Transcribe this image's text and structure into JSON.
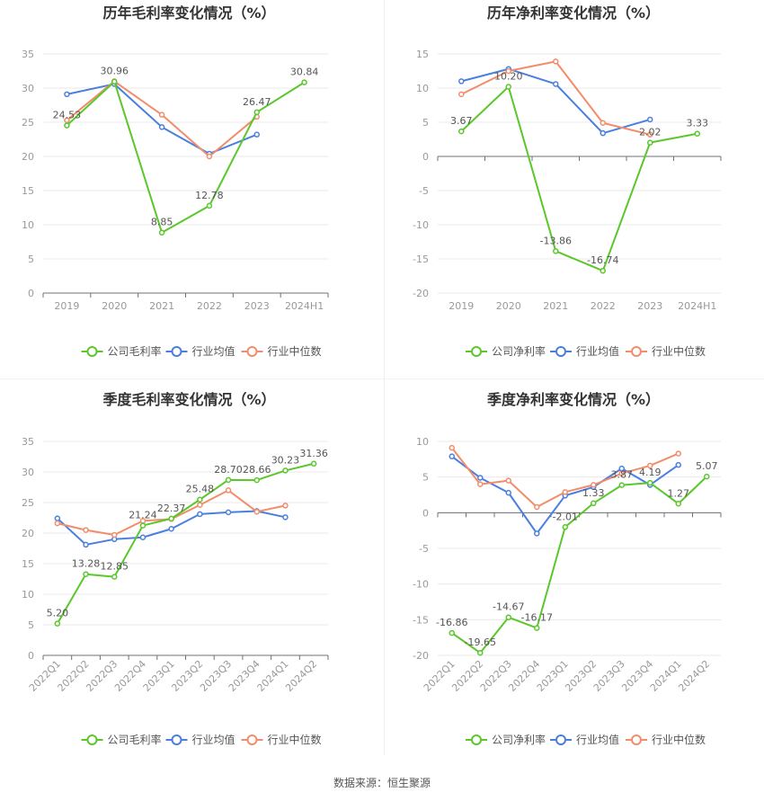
{
  "source": "数据来源：恒生聚源",
  "colors": {
    "company": "#5ac72b",
    "avg": "#4a7fe0",
    "median": "#f28c6a",
    "axis": "#999999",
    "grid": "#e8e8e8",
    "title": "#333333",
    "label": "#555555"
  },
  "chart_data": [
    {
      "type": "line",
      "title": "历年毛利率变化情况（%）",
      "x": [
        "2019",
        "2020",
        "2021",
        "2022",
        "2023",
        "2024H1"
      ],
      "ylim": [
        0,
        35
      ],
      "yticks": [
        0,
        5,
        10,
        15,
        20,
        25,
        30,
        35
      ],
      "xlabel_rotated": false,
      "legend_position": "bottom",
      "series": [
        {
          "name": "公司毛利率",
          "color": "#5ac72b",
          "values": [
            24.53,
            30.96,
            8.85,
            12.78,
            26.47,
            30.84
          ],
          "labels": [
            "24.53",
            "30.96",
            "8.85",
            "12.78",
            "26.47",
            "30.84"
          ]
        },
        {
          "name": "行业均值",
          "color": "#4a7fe0",
          "values": [
            29.1,
            30.6,
            24.3,
            20.4,
            23.2,
            null
          ]
        },
        {
          "name": "行业中位数",
          "color": "#f28c6a",
          "values": [
            25.3,
            31.0,
            26.1,
            20.0,
            25.8,
            null
          ]
        }
      ]
    },
    {
      "type": "line",
      "title": "历年净利率变化情况（%）",
      "x": [
        "2019",
        "2020",
        "2021",
        "2022",
        "2023",
        "2024H1"
      ],
      "ylim": [
        -20,
        15
      ],
      "yticks": [
        -20,
        -15,
        -10,
        -5,
        0,
        5,
        10,
        15
      ],
      "xlabel_rotated": false,
      "legend_position": "bottom",
      "series": [
        {
          "name": "公司净利率",
          "color": "#5ac72b",
          "values": [
            3.67,
            10.2,
            -13.86,
            -16.74,
            2.02,
            3.33
          ],
          "labels": [
            "3.67",
            "10.20",
            "-13.86",
            "-16.74",
            "2.02",
            "3.33"
          ]
        },
        {
          "name": "行业均值",
          "color": "#4a7fe0",
          "values": [
            11.0,
            12.8,
            10.6,
            3.4,
            5.4,
            null
          ]
        },
        {
          "name": "行业中位数",
          "color": "#f28c6a",
          "values": [
            9.1,
            12.5,
            13.9,
            4.9,
            3.2,
            null
          ]
        }
      ]
    },
    {
      "type": "line",
      "title": "季度毛利率变化情况（%）",
      "x": [
        "2022Q1",
        "2022Q2",
        "2022Q3",
        "2022Q4",
        "2023Q1",
        "2023Q2",
        "2023Q3",
        "2023Q4",
        "2024Q1",
        "2024Q2"
      ],
      "ylim": [
        0,
        35
      ],
      "yticks": [
        0,
        5,
        10,
        15,
        20,
        25,
        30,
        35
      ],
      "xlabel_rotated": true,
      "legend_position": "bottom",
      "series": [
        {
          "name": "公司毛利率",
          "color": "#5ac72b",
          "values": [
            5.2,
            13.28,
            12.85,
            21.24,
            22.37,
            25.48,
            28.7,
            28.66,
            30.23,
            31.36
          ],
          "labels": [
            "5.20",
            "13.28",
            "12.85",
            "21.24",
            "22.37",
            "25.48",
            "28.70",
            "28.66",
            "30.23",
            "31.36"
          ]
        },
        {
          "name": "行业均值",
          "color": "#4a7fe0",
          "values": [
            22.4,
            18.1,
            19.0,
            19.3,
            20.7,
            23.1,
            23.4,
            23.6,
            22.6,
            null
          ]
        },
        {
          "name": "行业中位数",
          "color": "#f28c6a",
          "values": [
            21.6,
            20.5,
            19.7,
            22.0,
            22.3,
            24.6,
            27.0,
            23.5,
            24.5,
            null
          ]
        }
      ]
    },
    {
      "type": "line",
      "title": "季度净利率变化情况（%）",
      "x": [
        "2022Q1",
        "2022Q2",
        "2022Q3",
        "2022Q4",
        "2023Q1",
        "2023Q2",
        "2023Q3",
        "2023Q4",
        "2024Q1",
        "2024Q2"
      ],
      "ylim": [
        -20,
        10
      ],
      "yticks": [
        -20,
        -15,
        -10,
        -5,
        0,
        5,
        10
      ],
      "xlabel_rotated": true,
      "legend_position": "bottom",
      "series": [
        {
          "name": "公司净利率",
          "color": "#5ac72b",
          "values": [
            -16.86,
            -19.65,
            -14.67,
            -16.17,
            -2.01,
            1.33,
            3.87,
            4.19,
            1.27,
            5.07
          ],
          "labels": [
            "-16.86",
            "-19.65",
            "-14.67",
            "-16.17",
            "-2.01",
            "1.33",
            "3.87",
            "4.19",
            "1.27",
            "5.07"
          ]
        },
        {
          "name": "行业均值",
          "color": "#4a7fe0",
          "values": [
            7.9,
            4.9,
            2.8,
            -2.9,
            2.4,
            3.6,
            6.2,
            3.9,
            6.7,
            null
          ]
        },
        {
          "name": "行业中位数",
          "color": "#f28c6a",
          "values": [
            9.1,
            4.0,
            4.5,
            0.8,
            2.9,
            3.9,
            5.5,
            6.6,
            8.3,
            null
          ]
        }
      ]
    }
  ]
}
